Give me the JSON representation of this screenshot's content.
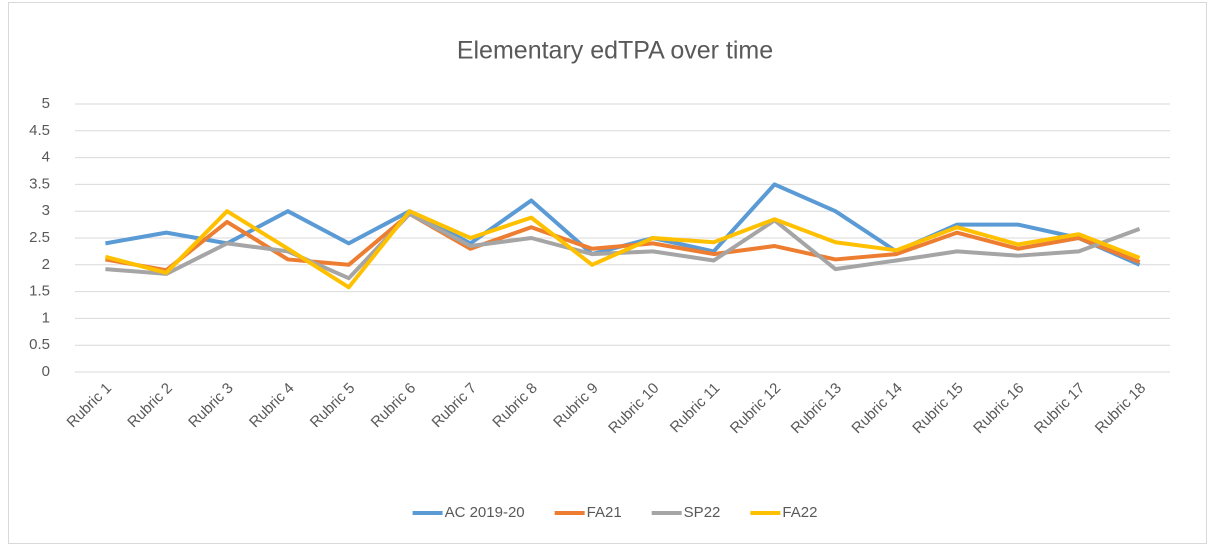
{
  "chart_data": {
    "type": "line",
    "title": "Elementary edTPA over time",
    "categories": [
      "Rubric 1",
      "Rubric 2",
      "Rubric 3",
      "Rubric 4",
      "Rubric 5",
      "Rubric 6",
      "Rubric 7",
      "Rubric 8",
      "Rubric 9",
      "Rubric 10",
      "Rubric 11",
      "Rubric 12",
      "Rubric 13",
      "Rubric 14",
      "Rubric 15",
      "Rubric 16",
      "Rubric 17",
      "Rubric 18"
    ],
    "series": [
      {
        "name": "AC 2019-20",
        "color": "#5b9bd5",
        "values": [
          2.4,
          2.6,
          2.4,
          3.0,
          2.4,
          3.0,
          2.4,
          3.2,
          2.2,
          2.5,
          2.25,
          3.5,
          3.0,
          2.25,
          2.75,
          2.75,
          2.5,
          2.0
        ]
      },
      {
        "name": "FA21",
        "color": "#ed7d31",
        "values": [
          2.1,
          1.9,
          2.8,
          2.1,
          2.0,
          2.95,
          2.3,
          2.7,
          2.3,
          2.4,
          2.2,
          2.35,
          2.1,
          2.2,
          2.6,
          2.3,
          2.5,
          2.05
        ]
      },
      {
        "name": "SP22",
        "color": "#a5a5a5",
        "values": [
          1.92,
          1.83,
          2.4,
          2.25,
          1.75,
          2.95,
          2.35,
          2.5,
          2.2,
          2.25,
          2.08,
          2.83,
          1.92,
          2.08,
          2.25,
          2.17,
          2.25,
          2.67
        ]
      },
      {
        "name": "FA22",
        "color": "#ffc000",
        "values": [
          2.15,
          1.85,
          3.0,
          2.3,
          1.58,
          3.0,
          2.5,
          2.88,
          2.0,
          2.5,
          2.42,
          2.85,
          2.42,
          2.27,
          2.7,
          2.38,
          2.57,
          2.13
        ]
      }
    ],
    "ylim": [
      0,
      5
    ],
    "yticks": [
      0,
      0.5,
      1,
      1.5,
      2,
      2.5,
      3,
      3.5,
      4,
      4.5,
      5
    ],
    "grid": true,
    "legend": "bottom"
  }
}
